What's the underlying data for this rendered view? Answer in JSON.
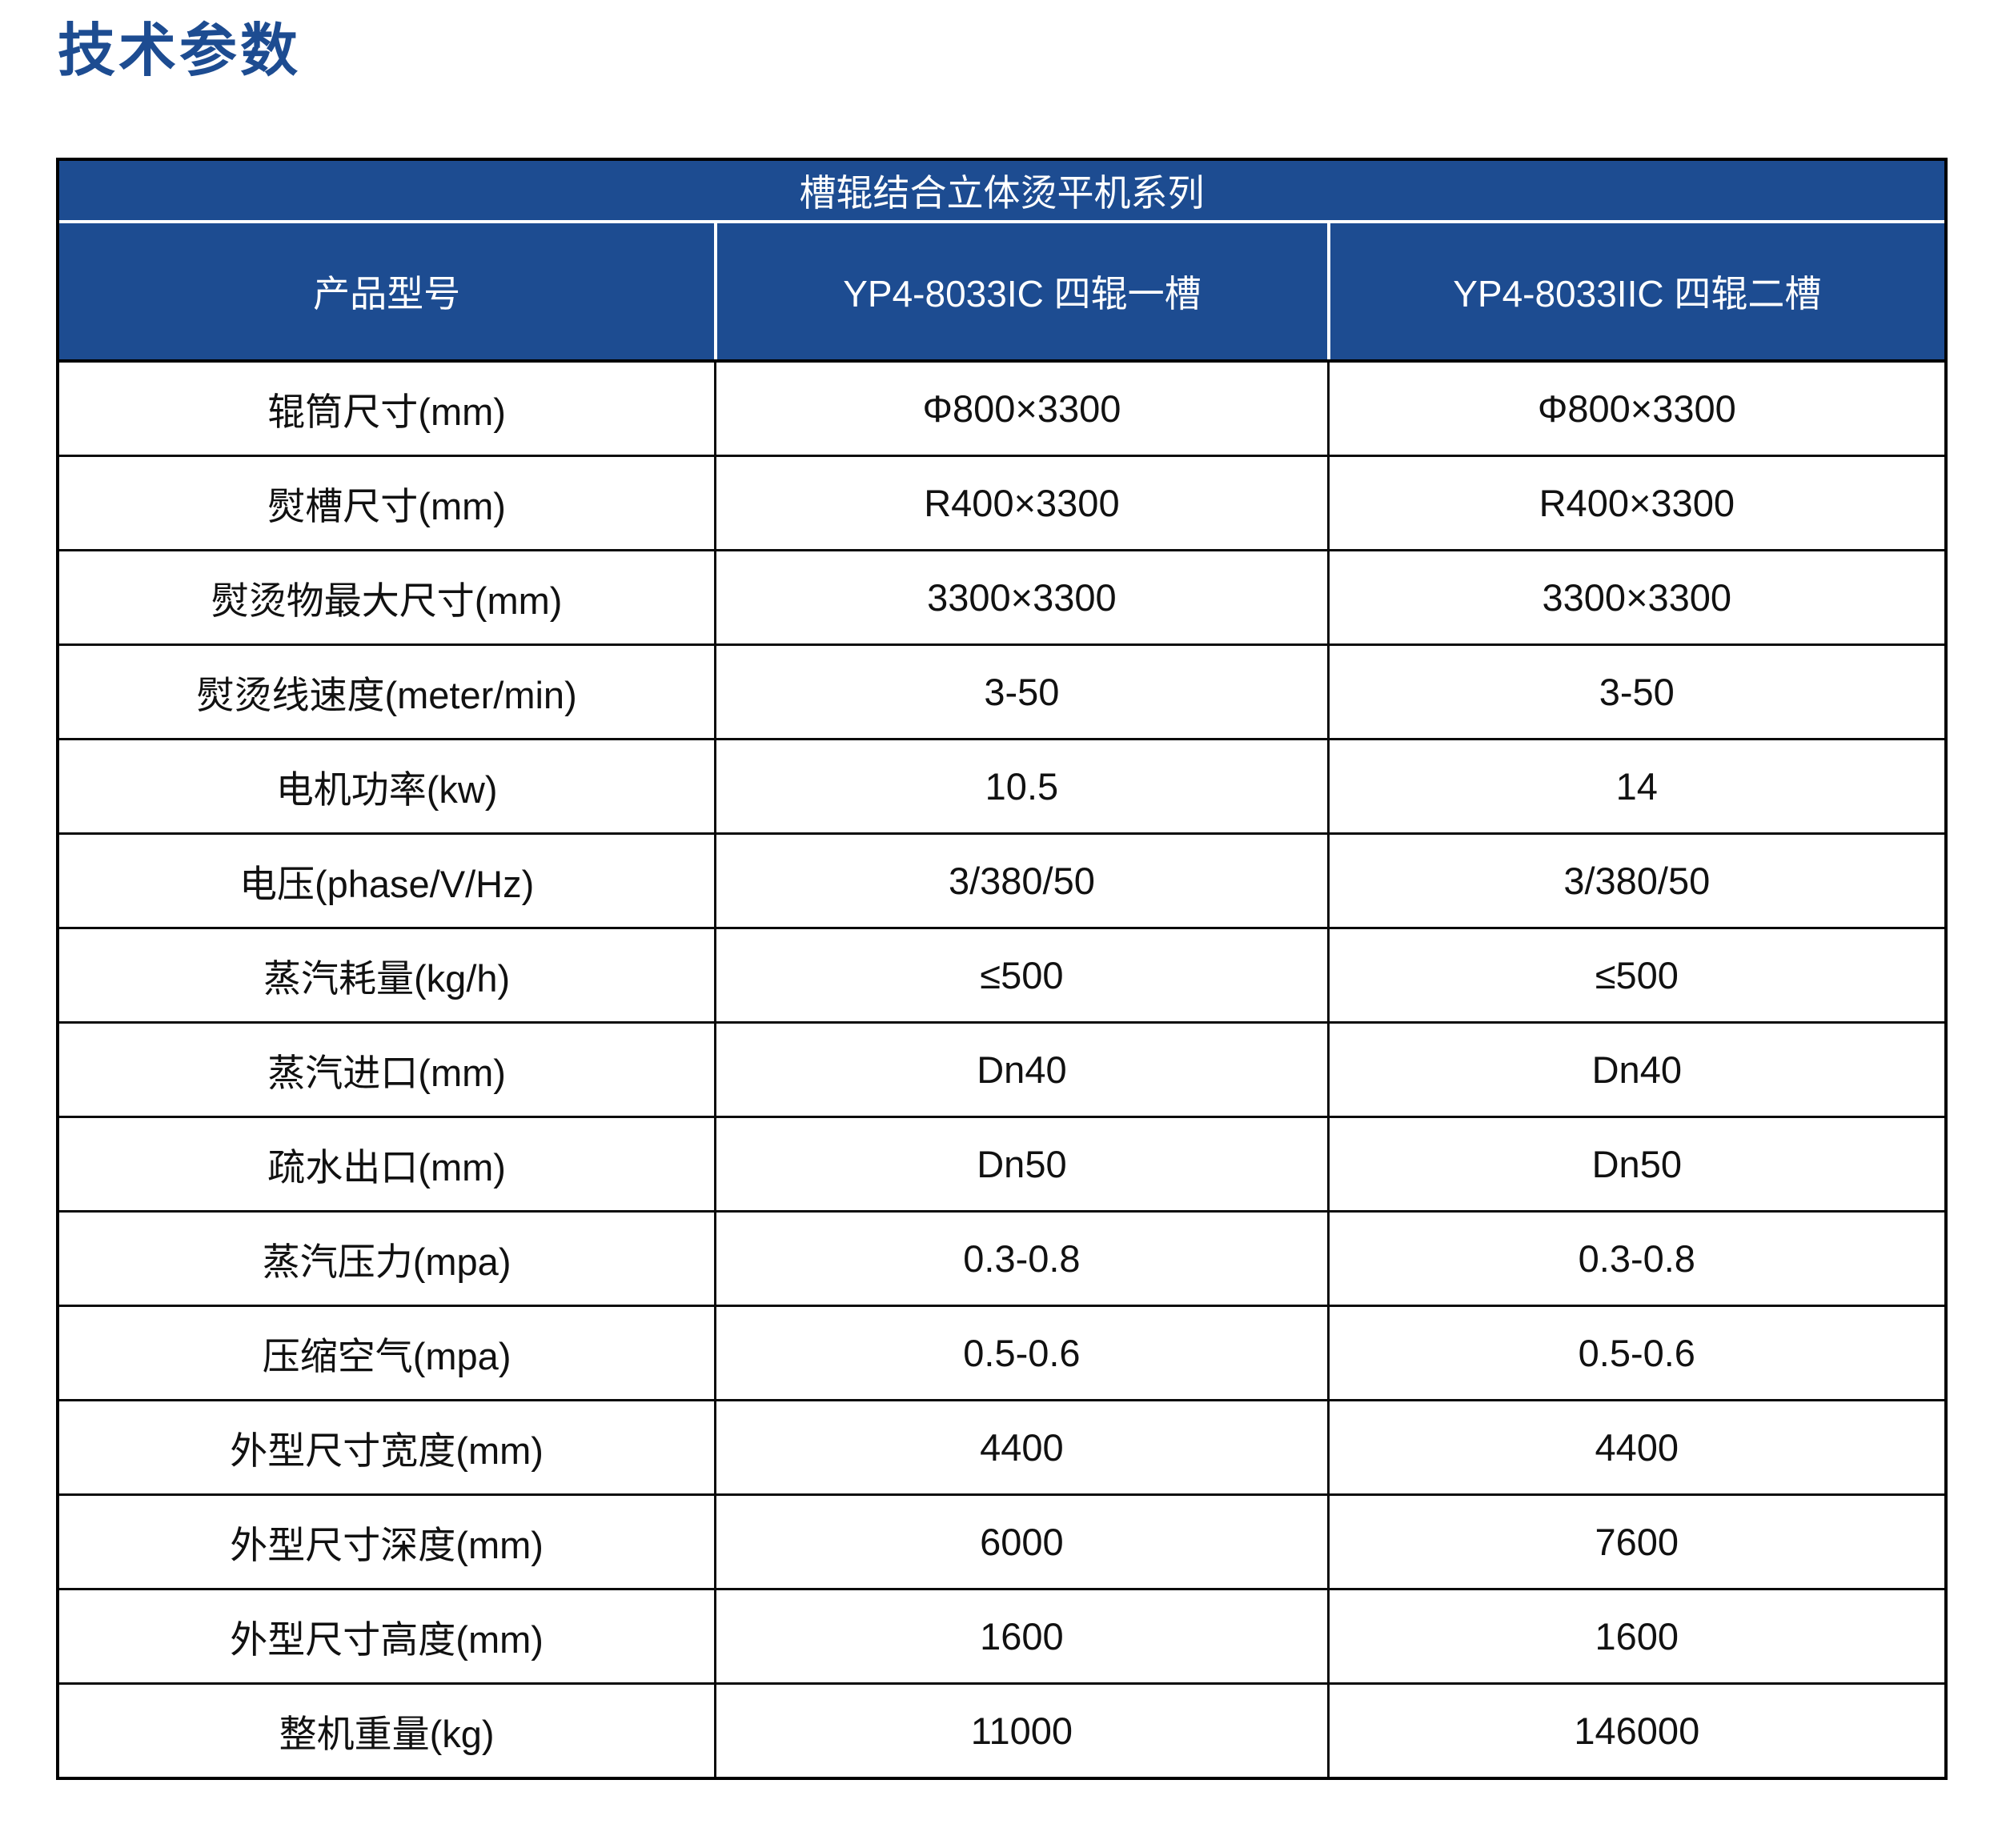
{
  "page_title": "技术参数",
  "colors": {
    "primary_blue": "#1d4c91",
    "header_text": "#ffffff",
    "body_text": "#111111",
    "border": "#000000",
    "background": "#ffffff"
  },
  "table": {
    "series_header": "槽辊结合立体烫平机系列",
    "columns": [
      "产品型号",
      "YP4-8033IC 四辊一槽",
      "YP4-8033IIC 四辊二槽"
    ],
    "rows": [
      {
        "label": "辊筒尺寸(mm)",
        "values": [
          "Φ800×3300",
          "Φ800×3300"
        ]
      },
      {
        "label": "熨槽尺寸(mm)",
        "values": [
          "R400×3300",
          "R400×3300"
        ]
      },
      {
        "label": "熨烫物最大尺寸(mm)",
        "values": [
          "3300×3300",
          "3300×3300"
        ]
      },
      {
        "label": "熨烫线速度(meter/min)",
        "values": [
          "3-50",
          "3-50"
        ]
      },
      {
        "label": "电机功率(kw)",
        "values": [
          "10.5",
          "14"
        ]
      },
      {
        "label": "电压(phase/V/Hz)",
        "values": [
          "3/380/50",
          "3/380/50"
        ]
      },
      {
        "label": "蒸汽耗量(kg/h)",
        "values": [
          "≤500",
          "≤500"
        ]
      },
      {
        "label": "蒸汽进口(mm)",
        "values": [
          "Dn40",
          "Dn40"
        ]
      },
      {
        "label": "疏水出口(mm)",
        "values": [
          "Dn50",
          "Dn50"
        ]
      },
      {
        "label": "蒸汽压力(mpa)",
        "values": [
          "0.3-0.8",
          "0.3-0.8"
        ]
      },
      {
        "label": "压缩空气(mpa)",
        "values": [
          "0.5-0.6",
          "0.5-0.6"
        ]
      },
      {
        "label": "外型尺寸宽度(mm)",
        "values": [
          "4400",
          "4400"
        ]
      },
      {
        "label": "外型尺寸深度(mm)",
        "values": [
          "6000",
          "7600"
        ]
      },
      {
        "label": "外型尺寸高度(mm)",
        "values": [
          "1600",
          "1600"
        ]
      },
      {
        "label": "整机重量(kg)",
        "values": [
          "11000",
          "146000"
        ]
      }
    ]
  }
}
